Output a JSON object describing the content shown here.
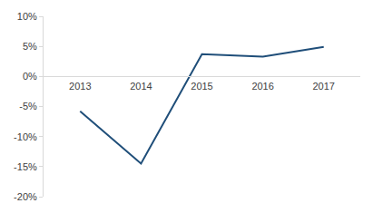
{
  "chart_data": {
    "type": "line",
    "categories": [
      "2013",
      "2014",
      "2015",
      "2016",
      "2017"
    ],
    "values": [
      -5.8,
      -14.5,
      3.7,
      3.3,
      4.9
    ],
    "color": "#1f4e79",
    "ylim": [
      -20,
      10
    ],
    "yticks": [
      {
        "value": -20,
        "label": "-20%"
      },
      {
        "value": -15,
        "label": "-15%"
      },
      {
        "value": -10,
        "label": "-10%"
      },
      {
        "value": -5,
        "label": "-5%"
      },
      {
        "value": 0,
        "label": "0%"
      },
      {
        "value": 5,
        "label": "5%"
      },
      {
        "value": 10,
        "label": "10%"
      }
    ],
    "grid": false
  }
}
